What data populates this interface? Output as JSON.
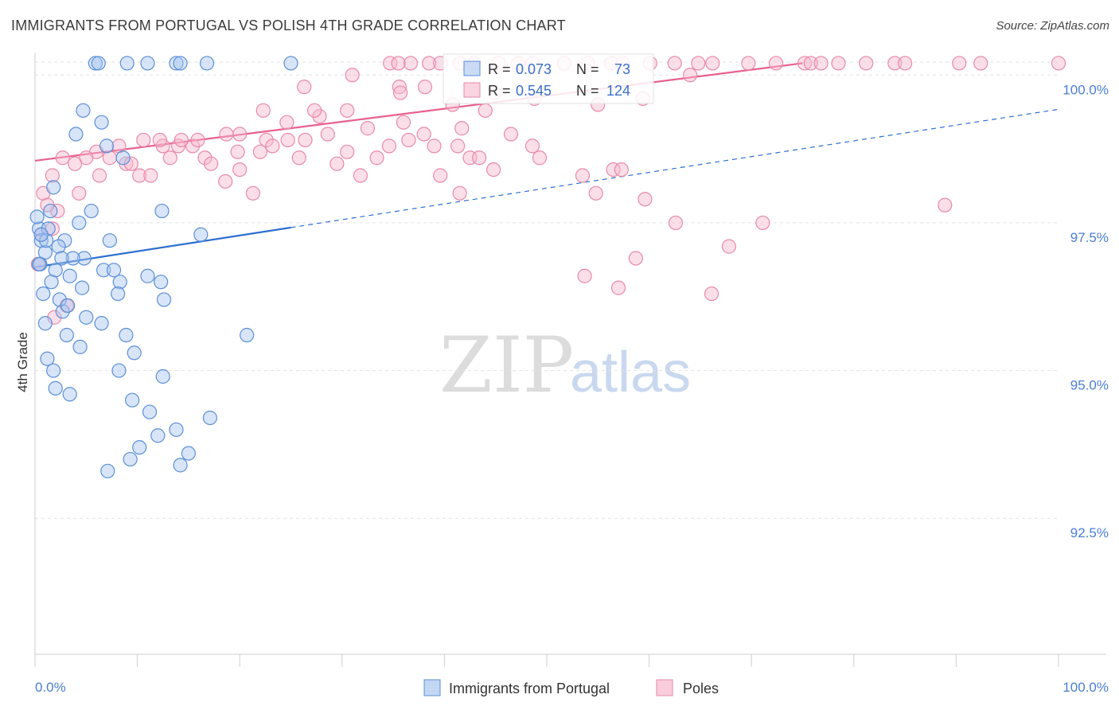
{
  "header": {
    "title": "IMMIGRANTS FROM PORTUGAL VS POLISH 4TH GRADE CORRELATION CHART",
    "source": "Source: ZipAtlas.com"
  },
  "watermark": {
    "zip": "ZIP",
    "atlas": "atlas"
  },
  "legend_box": {
    "rows": [
      {
        "r_label": "R =",
        "r_value": "0.073",
        "n_label": "N =",
        "n_value": "73"
      },
      {
        "r_label": "R =",
        "r_value": "0.545",
        "n_label": "N =",
        "n_value": "124"
      }
    ]
  },
  "bottom_legend": {
    "items": [
      "Immigrants from Portugal",
      "Poles"
    ]
  },
  "colors": {
    "blue_fill": "#a8c6f0",
    "blue_stroke": "#5b8fd8",
    "blue_line": "#2f6fd0",
    "pink_fill": "#f7b8cc",
    "pink_stroke": "#e889a8",
    "pink_line": "#e8608c",
    "grid": "#e2e2e2",
    "tick_text": "#4a7fd0"
  },
  "chart_data": {
    "type": "scatter",
    "title": "IMMIGRANTS FROM PORTUGAL VS POLISH 4TH GRADE CORRELATION CHART",
    "xlabel": "",
    "ylabel": "4th Grade",
    "xlim": [
      0,
      100
    ],
    "ylim": [
      90.2,
      100.3
    ],
    "x_tick_labels": [
      {
        "value": 0,
        "label": "0.0%"
      },
      {
        "value": 100,
        "label": "100.0%"
      }
    ],
    "y_ticks": [
      {
        "value": 100.0,
        "label": "100.0%"
      },
      {
        "value": 97.5,
        "label": "97.5%"
      },
      {
        "value": 95.0,
        "label": "95.0%"
      },
      {
        "value": 92.5,
        "label": "92.5%"
      }
    ],
    "series": [
      {
        "name": "Immigrants from Portugal",
        "color": "#5b8fd8",
        "trend": {
          "x": [
            0,
            25
          ],
          "y": [
            96.75,
            97.42
          ],
          "extend_to_x": 100,
          "extend_y": 99.42
        },
        "points": [
          [
            5.9,
            100.2
          ],
          [
            6.2,
            100.2
          ],
          [
            9,
            100.2
          ],
          [
            11,
            100.2
          ],
          [
            13.8,
            100.2
          ],
          [
            14.2,
            100.2
          ],
          [
            16.8,
            100.2
          ],
          [
            25,
            100.2
          ],
          [
            4.7,
            99.4
          ],
          [
            6.5,
            99.2
          ],
          [
            4,
            99.0
          ],
          [
            7,
            98.8
          ],
          [
            8.6,
            98.6
          ],
          [
            1.8,
            98.1
          ],
          [
            1.5,
            97.7
          ],
          [
            5.5,
            97.7
          ],
          [
            4.3,
            97.5
          ],
          [
            0.4,
            97.4
          ],
          [
            1.3,
            97.4
          ],
          [
            2.9,
            97.2
          ],
          [
            7.3,
            97.2
          ],
          [
            0.6,
            97.2
          ],
          [
            1,
            97.0
          ],
          [
            2.3,
            97.1
          ],
          [
            3.4,
            96.6
          ],
          [
            4.8,
            96.9
          ],
          [
            0.5,
            96.8
          ],
          [
            3.7,
            96.9
          ],
          [
            2,
            96.7
          ],
          [
            6.7,
            96.7
          ],
          [
            11,
            96.6
          ],
          [
            8.3,
            96.5
          ],
          [
            4.6,
            96.4
          ],
          [
            8.1,
            96.3
          ],
          [
            2.7,
            96.0
          ],
          [
            2.4,
            96.2
          ],
          [
            5,
            95.9
          ],
          [
            6.5,
            95.8
          ],
          [
            8.9,
            95.6
          ],
          [
            4.4,
            95.4
          ],
          [
            1,
            95.8
          ],
          [
            3.1,
            95.6
          ],
          [
            1.2,
            95.2
          ],
          [
            1.8,
            95.0
          ],
          [
            8.2,
            95.0
          ],
          [
            2,
            94.7
          ],
          [
            3.4,
            94.6
          ],
          [
            12.5,
            94.9
          ],
          [
            9.5,
            94.5
          ],
          [
            11.2,
            94.3
          ],
          [
            12,
            93.9
          ],
          [
            10.2,
            93.7
          ],
          [
            13.8,
            94.0
          ],
          [
            15,
            93.6
          ],
          [
            17.1,
            94.2
          ],
          [
            14.2,
            93.4
          ],
          [
            9.3,
            93.5
          ],
          [
            7.1,
            93.3
          ],
          [
            20.7,
            95.6
          ],
          [
            12.6,
            96.2
          ],
          [
            0.8,
            96.3
          ],
          [
            0.4,
            96.8
          ],
          [
            1.1,
            97.2
          ],
          [
            0.2,
            97.6
          ],
          [
            0.6,
            97.3
          ],
          [
            12.4,
            97.7
          ],
          [
            16.2,
            97.3
          ],
          [
            1.6,
            96.5
          ],
          [
            3.2,
            96.1
          ],
          [
            2.6,
            96.9
          ],
          [
            7.7,
            96.7
          ],
          [
            12.3,
            96.5
          ],
          [
            9.7,
            95.3
          ]
        ]
      },
      {
        "name": "Poles",
        "color": "#e889a8",
        "trend": {
          "x": [
            0,
            75
          ],
          "y": [
            98.55,
            100.2
          ]
        },
        "points": [
          [
            34.7,
            100.2
          ],
          [
            35.5,
            100.2
          ],
          [
            36.7,
            100.2
          ],
          [
            38.5,
            100.2
          ],
          [
            39.6,
            100.2
          ],
          [
            41.5,
            100.2
          ],
          [
            42.9,
            100.2
          ],
          [
            45.3,
            100.2
          ],
          [
            47.2,
            100.2
          ],
          [
            48.6,
            100.2
          ],
          [
            51.7,
            100.2
          ],
          [
            54,
            100.2
          ],
          [
            56.3,
            100.2
          ],
          [
            57.4,
            100.2
          ],
          [
            60.1,
            100.2
          ],
          [
            62.5,
            100.2
          ],
          [
            64.8,
            100.2
          ],
          [
            66.2,
            100.2
          ],
          [
            69.7,
            100.2
          ],
          [
            72.4,
            100.2
          ],
          [
            75.2,
            100.2
          ],
          [
            75.8,
            100.2
          ],
          [
            76.8,
            100.2
          ],
          [
            78.5,
            100.2
          ],
          [
            81.2,
            100.2
          ],
          [
            84,
            100.2
          ],
          [
            85,
            100.2
          ],
          [
            90.3,
            100.2
          ],
          [
            92.4,
            100.2
          ],
          [
            100,
            100.2
          ],
          [
            31,
            100.0
          ],
          [
            30.5,
            99.4
          ],
          [
            26.3,
            99.8
          ],
          [
            35.6,
            99.8
          ],
          [
            38.1,
            99.8
          ],
          [
            40.8,
            99.5
          ],
          [
            44,
            99.4
          ],
          [
            46.5,
            99.0
          ],
          [
            41.7,
            99.1
          ],
          [
            36,
            99.2
          ],
          [
            32.5,
            99.1
          ],
          [
            27.8,
            99.3
          ],
          [
            24.6,
            99.2
          ],
          [
            22.6,
            98.9
          ],
          [
            20,
            99.0
          ],
          [
            18.7,
            99.0
          ],
          [
            16.6,
            98.6
          ],
          [
            15.4,
            98.8
          ],
          [
            14,
            98.8
          ],
          [
            13.2,
            98.6
          ],
          [
            10.6,
            98.9
          ],
          [
            10.2,
            98.3
          ],
          [
            8.9,
            98.5
          ],
          [
            8.2,
            98.8
          ],
          [
            6,
            98.7
          ],
          [
            5,
            98.6
          ],
          [
            3.9,
            98.5
          ],
          [
            2.7,
            98.6
          ],
          [
            1.7,
            98.3
          ],
          [
            0.8,
            98.0
          ],
          [
            12.5,
            98.8
          ],
          [
            14.3,
            98.9
          ],
          [
            17.2,
            98.5
          ],
          [
            18.6,
            98.2
          ],
          [
            20,
            98.4
          ],
          [
            21.3,
            98.0
          ],
          [
            23.2,
            98.8
          ],
          [
            24.7,
            98.9
          ],
          [
            26.4,
            98.9
          ],
          [
            28.6,
            99.0
          ],
          [
            30.5,
            98.7
          ],
          [
            31.8,
            98.3
          ],
          [
            33.4,
            98.6
          ],
          [
            34.6,
            98.8
          ],
          [
            36.5,
            98.9
          ],
          [
            38,
            99.0
          ],
          [
            39,
            98.8
          ],
          [
            41.3,
            98.8
          ],
          [
            42.5,
            98.6
          ],
          [
            43.4,
            98.6
          ],
          [
            44.8,
            98.4
          ],
          [
            48.6,
            98.8
          ],
          [
            49.3,
            98.6
          ],
          [
            53.5,
            98.3
          ],
          [
            54.8,
            98.0
          ],
          [
            56.5,
            98.4
          ],
          [
            57.3,
            98.4
          ],
          [
            59.6,
            97.9
          ],
          [
            29.5,
            98.5
          ],
          [
            25.8,
            98.6
          ],
          [
            22,
            98.7
          ],
          [
            19.8,
            98.7
          ],
          [
            15.9,
            98.9
          ],
          [
            12.2,
            98.9
          ],
          [
            11.3,
            98.3
          ],
          [
            9.4,
            98.5
          ],
          [
            7.3,
            98.6
          ],
          [
            6.3,
            98.3
          ],
          [
            4.3,
            98.0
          ],
          [
            2.2,
            97.7
          ],
          [
            1.2,
            97.8
          ],
          [
            0.6,
            97.3
          ],
          [
            1.7,
            97.4
          ],
          [
            0.3,
            96.8
          ],
          [
            3.1,
            96.1
          ],
          [
            1.9,
            95.9
          ],
          [
            22.3,
            99.4
          ],
          [
            27.3,
            99.4
          ],
          [
            35.7,
            99.7
          ],
          [
            44.9,
            99.7
          ],
          [
            48.8,
            99.6
          ],
          [
            55,
            99.5
          ],
          [
            59.4,
            99.6
          ],
          [
            64,
            100.0
          ],
          [
            39.6,
            98.3
          ],
          [
            41.5,
            98.0
          ],
          [
            62.6,
            97.5
          ],
          [
            71.1,
            97.5
          ],
          [
            67.8,
            97.1
          ],
          [
            58.7,
            96.9
          ],
          [
            53.7,
            96.6
          ],
          [
            57,
            96.4
          ],
          [
            66.1,
            96.3
          ],
          [
            88.9,
            97.8
          ]
        ]
      }
    ]
  }
}
